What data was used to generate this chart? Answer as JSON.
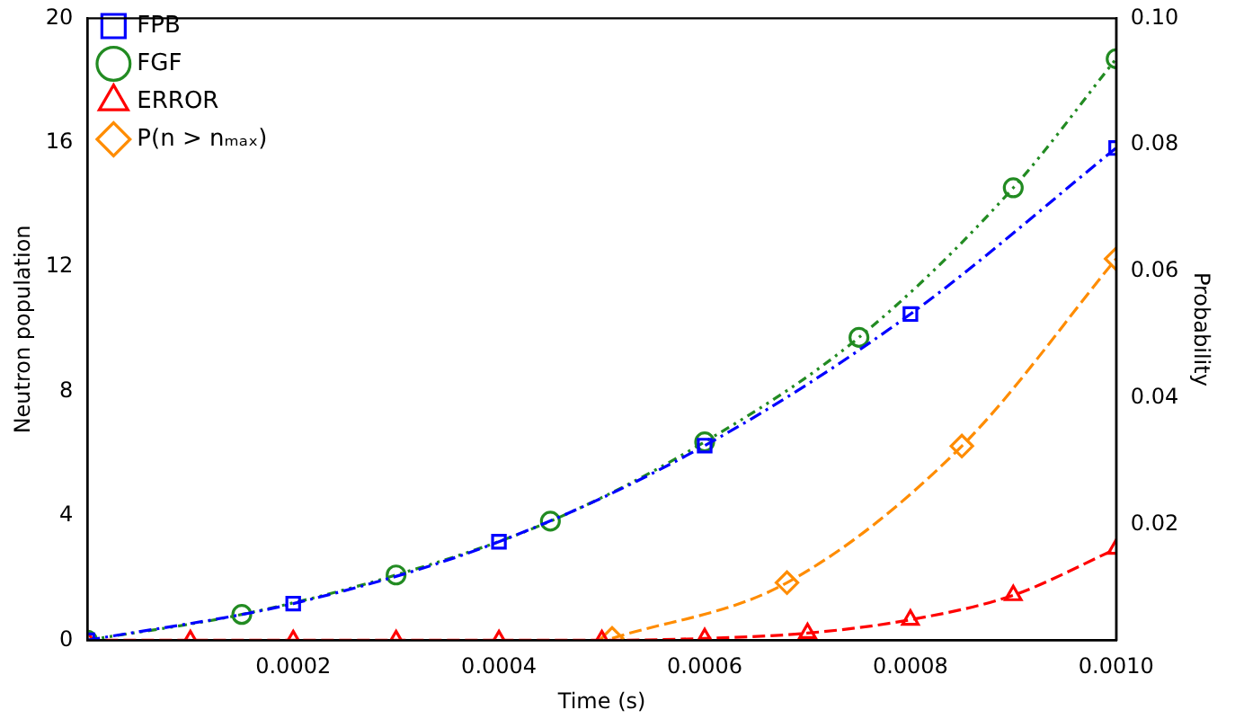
{
  "chart_data": {
    "type": "line",
    "xlabel": "Time (s)",
    "ylabel": "Neutron population",
    "y2label": "Probability",
    "xlim": [
      0,
      0.001
    ],
    "xticks": [
      0.0002,
      0.0004,
      0.0006,
      0.0008,
      {
        "value": 0.001,
        "label": "0.0010"
      }
    ],
    "ylim": [
      0,
      20
    ],
    "yticks": [
      0,
      4,
      8,
      12,
      16,
      20
    ],
    "y2lim": [
      0.0017,
      0.1
    ],
    "y2ticks": [
      0.02,
      0.04,
      0.06,
      0.08,
      {
        "value": 0.1,
        "label": "0.10"
      }
    ],
    "legend": "top left",
    "grid": false,
    "series": [
      {
        "name": "FPB",
        "color": "#0000ff",
        "marker": "square",
        "line_style": "dashed",
        "x": [
          0,
          0.0002,
          0.0004,
          0.0006,
          0.0008,
          0.001
        ],
        "values": [
          0,
          1.18,
          3.17,
          6.26,
          10.49,
          15.83
        ]
      },
      {
        "name": "FGF",
        "color": "#228b22",
        "marker": "circle",
        "line_style": "dotted",
        "x": [
          0,
          0.00015,
          0.0003,
          0.00045,
          0.0006,
          0.00075,
          0.0009,
          0.001
        ],
        "values": [
          0,
          0.83,
          2.1,
          3.83,
          6.38,
          9.74,
          14.55,
          18.7
        ]
      },
      {
        "name": "ERROR",
        "color": "#ff0000",
        "marker": "triangle",
        "line_style": "dashed",
        "x": [
          0,
          0.0001,
          0.0002,
          0.0003,
          0.0004,
          0.0005,
          0.0006,
          0.0007,
          0.0008,
          0.0009,
          0.001
        ],
        "values": [
          0,
          0,
          0,
          0,
          0,
          0,
          0.06,
          0.23,
          0.66,
          1.45,
          2.94
        ]
      },
      {
        "name": "P(n > nₘₐₓ)",
        "color": "#ff8c00",
        "marker": "diamond",
        "line_style": "dashed",
        "axis": "y2",
        "x": [
          0.00051,
          0.00068,
          0.00085,
          0.001
        ],
        "values": [
          0.002,
          0.0108,
          0.0324,
          0.062
        ]
      }
    ]
  }
}
